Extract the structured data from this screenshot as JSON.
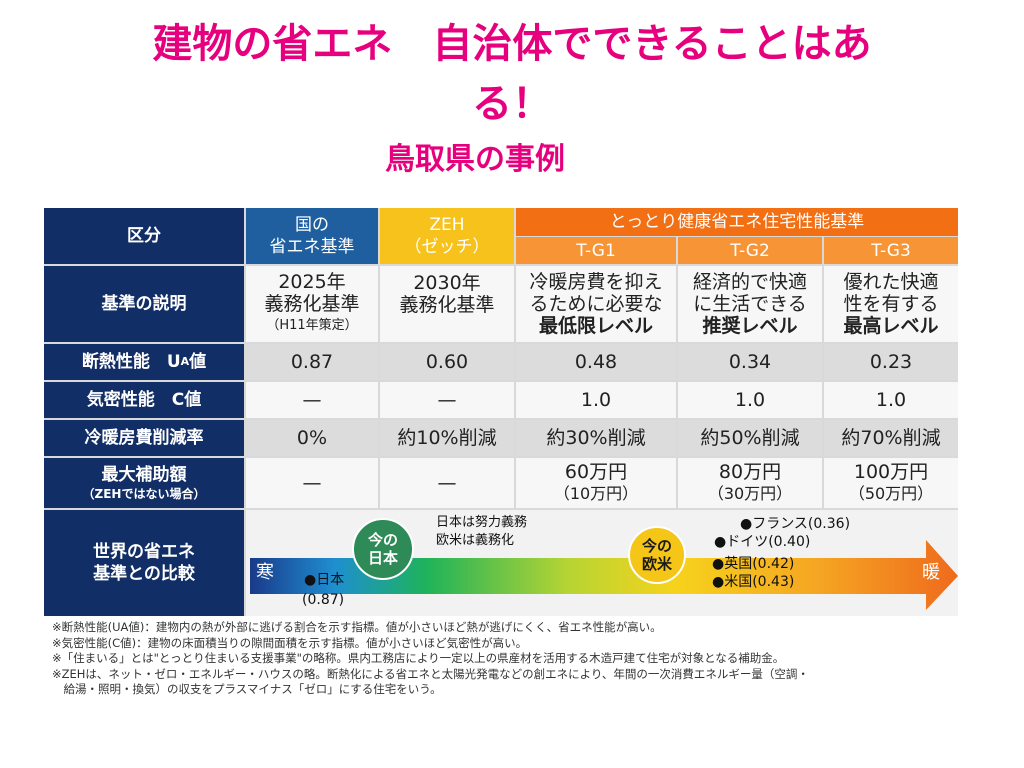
{
  "title": {
    "line1": "建物の省エネ　自治体でできることはあ",
    "line2": "る！",
    "subtitle": "鳥取県の事例"
  },
  "table": {
    "header": {
      "kubun": "区分",
      "kuni": [
        "国の",
        "省エネ基準"
      ],
      "zeh": [
        "ZEH",
        "（ゼッチ）"
      ],
      "tg_group": "とっとり健康省エネ住宅性能基準",
      "tg1": "T-G1",
      "tg2": "T-G2",
      "tg3": "T-G3"
    },
    "rows": {
      "desc": {
        "label": "基準の説明",
        "kuni": [
          "2025年",
          "義務化基準",
          "（H11年策定）"
        ],
        "zeh": [
          "2030年",
          "義務化基準"
        ],
        "tg1": [
          "冷暖房費を抑え",
          "るために必要な",
          "最低限レベル"
        ],
        "tg2": [
          "経済的で快適",
          "に生活できる",
          "推奨レベル"
        ],
        "tg3": [
          "優れた快適",
          "性を有する",
          "最高レベル"
        ]
      },
      "ua": {
        "label": "断熱性能　U",
        "label_sub": "A",
        "label_tail": "値",
        "kuni": "0.87",
        "zeh": "0.60",
        "tg1": "0.48",
        "tg2": "0.34",
        "tg3": "0.23"
      },
      "c": {
        "label": "気密性能　C値",
        "kuni": "—",
        "zeh": "—",
        "tg1": "1.0",
        "tg2": "1.0",
        "tg3": "1.0"
      },
      "cut": {
        "label": "冷暖房費削減率",
        "kuni": "0%",
        "zeh": "約10%削減",
        "tg1": "約30%削減",
        "tg2": "約50%削減",
        "tg3": "約70%削減"
      },
      "subsidy": {
        "label": "最大補助額",
        "label_sub": "（ZEHではない場合）",
        "kuni": "—",
        "zeh": "—",
        "tg1": [
          "60万円",
          "（10万円）"
        ],
        "tg2": [
          "80万円",
          "（30万円）"
        ],
        "tg3": [
          "100万円",
          "（50万円）"
        ]
      },
      "world": {
        "label": [
          "世界の省エネ",
          "基準との比較"
        ],
        "cold": "寒",
        "warm": "暖",
        "japan_point": "●日本",
        "japan_value": "(0.87)",
        "bubble_japan": [
          "今の",
          "日本"
        ],
        "bubble_eu": [
          "今の",
          "欧米"
        ],
        "note_japan": "日本は努力義務",
        "note_eu": "欧米は義務化",
        "france": "●フランス(0.36)",
        "germany": "●ドイツ(0.40)",
        "uk": "●英国(0.42)",
        "us": "●米国(0.43)"
      }
    }
  },
  "notes": [
    "※断熱性能(UA値)：建物内の熱が外部に逃げる割合を示す指標。値が小さいほど熱が逃げにくく、省エネ性能が高い。",
    "※気密性能(C値)：建物の床面積当りの隙間面積を示す指標。値が小さいほど気密性が高い。",
    "※「住まいる」とは\"とっとり住まいる支援事業\"の略称。県内工務店により一定以上の県産材を活用する木造戸建て住宅が対象となる補助金。",
    "※ZEHは、ネット・ゼロ・エネルギー・ハウスの略。断熱化による省エネと太陽光発電などの創エネにより、年間の一次消費エネルギー量（空調・",
    "　給湯・照明・換気）の収支をプラスマイナス「ゼロ」にする住宅をいう。"
  ],
  "colors": {
    "title": "#e6007e",
    "header_navy": "#122e66",
    "kuni_blue": "#1f5fa0",
    "zeh_yellow": "#f7c21b",
    "tg_orange": "#f36f14",
    "bubble_green": "#2e8b57",
    "bubble_yellow": "#f5c518"
  }
}
